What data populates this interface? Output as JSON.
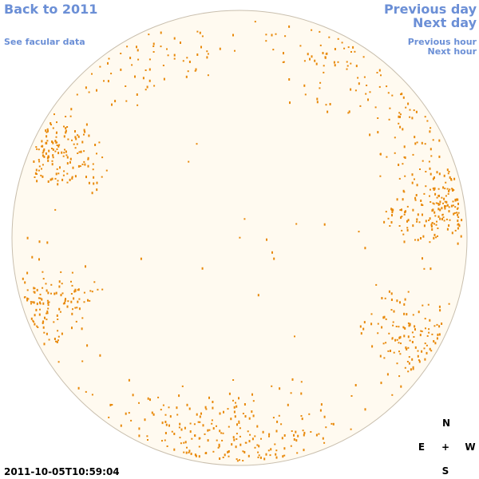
{
  "nav": {
    "back": "Back to 2011",
    "facular": "See facular data",
    "previous_day": "Previous day",
    "next_day": "Next day",
    "previous_hour": "Previous hour",
    "next_hour": "Next hour"
  },
  "timestamp": "2011-10-05T10:59:04",
  "compass": {
    "north": "N",
    "east": "E",
    "center": "+",
    "west": "W",
    "south": "S"
  }
}
